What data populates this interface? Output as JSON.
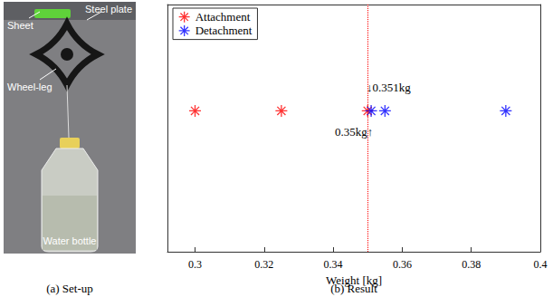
{
  "panel_a": {
    "labels": {
      "sheet": "Sheet",
      "plate": "Steel plate",
      "leg": "Wheel-leg",
      "bottle": "Water bottle"
    },
    "caption": "(a) Set-up"
  },
  "chart_data": {
    "type": "scatter",
    "caption": "(b) Result",
    "x_label": "Weight [kg]",
    "series": [
      {
        "name": "Attachment",
        "color": "#ff0000",
        "marker": "asterisk",
        "x": [
          0.3,
          0.325,
          0.35
        ],
        "values": [
          0.57,
          0.57,
          0.57
        ]
      },
      {
        "name": "Detachment",
        "color": "#0000ff",
        "marker": "asterisk",
        "x": [
          0.351,
          0.355,
          0.39
        ],
        "values": [
          0.57,
          0.57,
          0.57
        ]
      }
    ],
    "xlim": [
      0.292,
      0.4
    ],
    "xticks": [
      0.3,
      0.32,
      0.34,
      0.36,
      0.38,
      0.4
    ],
    "ylim": [
      0,
      1
    ],
    "tick_labels": "x",
    "grid": false,
    "legend": "upper left",
    "reference_line": {
      "x": 0.35,
      "color": "#ff0000",
      "line_style": "dotted"
    },
    "annotations": [
      {
        "text": "↓0.351kg",
        "x": 0.351,
        "y": 0.665,
        "side": "right"
      },
      {
        "text": "0.35kg↑",
        "x": 0.35,
        "y": 0.485,
        "side": "left"
      }
    ]
  }
}
